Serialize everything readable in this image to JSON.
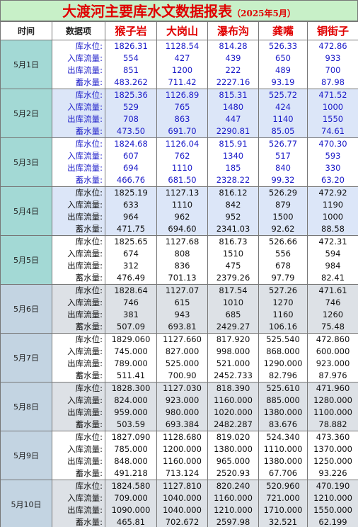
{
  "title": "大渡河主要库水文数据报表",
  "subtitle": "（2025年5月）",
  "header": [
    "时间",
    "数据项",
    "猴子岩",
    "大岗山",
    "瀑布沟",
    "龚嘴",
    "铜街子"
  ],
  "items": [
    "库水位:",
    "入库流量:",
    "出库流量:",
    "蓄水量:"
  ],
  "rows": [
    {
      "date": "5月1日",
      "values": [
        [
          "1826.31",
          "554",
          "851",
          "483.262"
        ],
        [
          "1128.54",
          "427",
          "1200",
          "711.42"
        ],
        [
          "814.28",
          "439",
          "222",
          "2227.16"
        ],
        [
          "526.33",
          "650",
          "489",
          "93.19"
        ],
        [
          "472.86",
          "933",
          "700",
          "87.98"
        ]
      ]
    },
    {
      "date": "5月2日",
      "values": [
        [
          "1825.36",
          "529",
          "708",
          "473.50"
        ],
        [
          "1126.89",
          "765",
          "863",
          "691.70"
        ],
        [
          "815.31",
          "1480",
          "447",
          "2290.81"
        ],
        [
          "525.72",
          "424",
          "1140",
          "85.05"
        ],
        [
          "471.52",
          "1000",
          "1550",
          "74.61"
        ]
      ]
    },
    {
      "date": "5月3日",
      "values": [
        [
          "1824.68",
          "607",
          "694",
          "466.76"
        ],
        [
          "1126.04",
          "762",
          "1110",
          "681.50"
        ],
        [
          "815.91",
          "1340",
          "185",
          "2328.22"
        ],
        [
          "526.77",
          "517",
          "840",
          "99.32"
        ],
        [
          "470.30",
          "593",
          "330",
          "63.20"
        ]
      ]
    },
    {
      "date": "5月4日",
      "values": [
        [
          "1825.19",
          "633",
          "964",
          "471.75"
        ],
        [
          "1127.13",
          "1110",
          "962",
          "694.60"
        ],
        [
          "816.12",
          "842",
          "952",
          "2341.03"
        ],
        [
          "526.29",
          "879",
          "1500",
          "92.62"
        ],
        [
          "472.92",
          "1190",
          "1000",
          "88.58"
        ]
      ]
    },
    {
      "date": "5月5日",
      "values": [
        [
          "1825.65",
          "674",
          "312",
          "476.49"
        ],
        [
          "1127.68",
          "808",
          "836",
          "701.13"
        ],
        [
          "816.73",
          "1510",
          "475",
          "2379.26"
        ],
        [
          "526.66",
          "556",
          "678",
          "97.79"
        ],
        [
          "472.31",
          "594",
          "984",
          "82.41"
        ]
      ]
    },
    {
      "date": "5月6日",
      "values": [
        [
          "1828.64",
          "746",
          "381",
          "507.09"
        ],
        [
          "1127.07",
          "615",
          "943",
          "693.81"
        ],
        [
          "817.54",
          "1010",
          "685",
          "2429.27"
        ],
        [
          "527.26",
          "1270",
          "1160",
          "106.16"
        ],
        [
          "471.61",
          "746",
          "1260",
          "75.48"
        ]
      ]
    },
    {
      "date": "5月7日",
      "values": [
        [
          "1829.060",
          "745.000",
          "789.000",
          "511.41"
        ],
        [
          "1127.660",
          "827.000",
          "525.000",
          "700.90"
        ],
        [
          "817.920",
          "998.000",
          "521.000",
          "2452.733"
        ],
        [
          "525.540",
          "868.000",
          "1290.000",
          "82.796"
        ],
        [
          "472.860",
          "600.000",
          "923.000",
          "87.976"
        ]
      ]
    },
    {
      "date": "5月8日",
      "values": [
        [
          "1828.300",
          "824.000",
          "959.000",
          "503.59"
        ],
        [
          "1127.030",
          "923.000",
          "980.000",
          "693.384"
        ],
        [
          "818.390",
          "1160.000",
          "1020.000",
          "2482.287"
        ],
        [
          "525.610",
          "885.000",
          "1380.000",
          "83.676"
        ],
        [
          "471.960",
          "1280.000",
          "1100.000",
          "78.882"
        ]
      ]
    },
    {
      "date": "5月9日",
      "values": [
        [
          "1827.090",
          "785.000",
          "848.000",
          "491.218"
        ],
        [
          "1128.680",
          "1200.000",
          "1160.000",
          "713.124"
        ],
        [
          "819.020",
          "1380.000",
          "965.000",
          "2520.93"
        ],
        [
          "524.340",
          "1110.000",
          "1380.000",
          "67.706"
        ],
        [
          "473.360",
          "1370.000",
          "1250.000",
          "93.226"
        ]
      ]
    },
    {
      "date": "5月10日",
      "values": [
        [
          "1824.580",
          "709.000",
          "1090.000",
          "465.81"
        ],
        [
          "1127.810",
          "1040.000",
          "1040.000",
          "702.672"
        ],
        [
          "820.240",
          "1160.000",
          "1210.000",
          "2597.98"
        ],
        [
          "520.960",
          "721.000",
          "1710.000",
          "32.521"
        ],
        [
          "470.190",
          "1210.000",
          "1550.000",
          "62.199"
        ]
      ]
    }
  ]
}
